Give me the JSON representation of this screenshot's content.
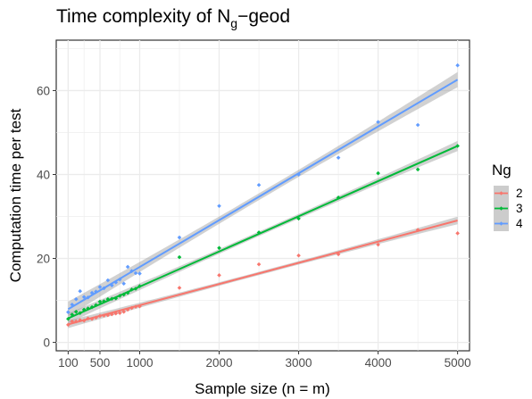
{
  "chart_data": {
    "type": "scatter",
    "title": "Time complexity of N",
    "title_subscript": "g",
    "title_suffix": "−geod",
    "xlabel": "Sample size (n = m)",
    "ylabel": "Computation time per test",
    "xlim": [
      -50,
      5150
    ],
    "ylim": [
      -2,
      72
    ],
    "x_ticks": [
      100,
      500,
      1000,
      2000,
      3000,
      4000,
      5000
    ],
    "x_tick_labels": [
      "100",
      "500",
      "1000",
      "2000",
      "3000",
      "4000",
      "5000"
    ],
    "y_ticks": [
      0,
      20,
      40,
      60
    ],
    "y_tick_labels": [
      "0",
      "20",
      "40",
      "60"
    ],
    "grid": true,
    "legend": {
      "title": "Ng",
      "position": "right"
    },
    "series": [
      {
        "name": "2",
        "color": "#F8766D",
        "x": [
          100,
          150,
          200,
          250,
          300,
          350,
          400,
          450,
          500,
          550,
          600,
          650,
          700,
          750,
          800,
          850,
          900,
          950,
          1000,
          1500,
          2000,
          2500,
          3000,
          3500,
          4000,
          4500,
          5000
        ],
        "y": [
          4.2,
          5.0,
          5.0,
          5.3,
          5.2,
          5.7,
          5.6,
          5.9,
          6.3,
          6.4,
          6.5,
          6.7,
          6.9,
          7.0,
          7.3,
          7.8,
          8.2,
          8.5,
          8.6,
          13.0,
          16.0,
          18.6,
          20.7,
          21.0,
          23.3,
          26.8,
          26.0
        ],
        "fit": {
          "intercept": 3.8,
          "slope": 0.00505,
          "se": 0.45
        }
      },
      {
        "name": "3",
        "color": "#00BA38",
        "x": [
          100,
          150,
          200,
          250,
          300,
          350,
          400,
          450,
          500,
          550,
          600,
          650,
          700,
          750,
          800,
          850,
          900,
          950,
          1000,
          1500,
          2000,
          2500,
          3000,
          3500,
          4000,
          4500,
          5000
        ],
        "y": [
          5.6,
          6.6,
          7.3,
          7.0,
          7.8,
          8.1,
          8.4,
          8.9,
          9.7,
          9.8,
          10.3,
          10.4,
          10.5,
          11.1,
          11.4,
          11.8,
          12.6,
          12.8,
          13.4,
          20.3,
          22.5,
          26.2,
          29.5,
          34.5,
          40.3,
          41.2,
          46.8
        ],
        "fit": {
          "intercept": 4.9,
          "slope": 0.00838,
          "se": 0.6
        }
      },
      {
        "name": "4",
        "color": "#619CFF",
        "x": [
          100,
          150,
          200,
          250,
          300,
          350,
          400,
          450,
          500,
          550,
          600,
          650,
          700,
          750,
          800,
          850,
          900,
          950,
          1000,
          1500,
          2000,
          2500,
          3000,
          3500,
          4000,
          4500,
          5000
        ],
        "y": [
          7.2,
          9.0,
          10.3,
          12.2,
          10.8,
          10.7,
          11.8,
          12.1,
          13.2,
          12.9,
          14.8,
          13.6,
          14.3,
          15.0,
          14.0,
          18.0,
          17.0,
          16.5,
          16.4,
          25.0,
          32.5,
          37.5,
          40.0,
          44.0,
          52.5,
          51.8,
          66.0
        ],
        "fit": {
          "intercept": 6.8,
          "slope": 0.01116,
          "se": 0.9
        }
      }
    ]
  }
}
